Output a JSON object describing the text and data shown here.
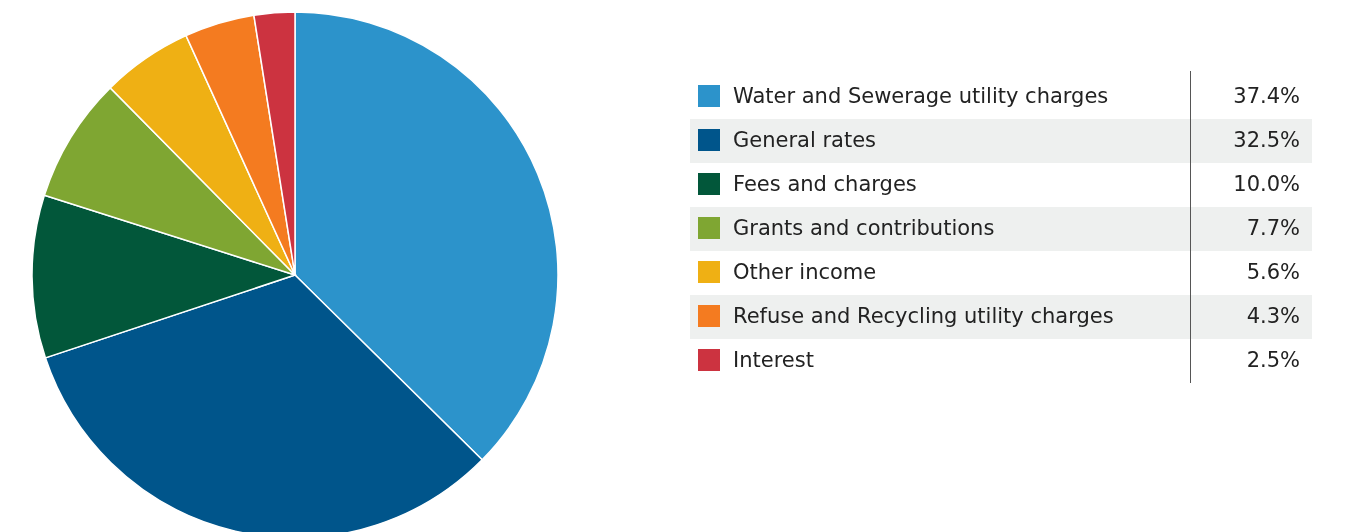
{
  "chart_data": {
    "type": "pie",
    "categories": [
      "Water and Sewerage utility charges",
      "General rates",
      "Fees and charges",
      "Grants and contributions",
      "Other income",
      "Refuse and Recycling utility charges",
      "Interest"
    ],
    "values": [
      37.4,
      32.5,
      10.0,
      7.7,
      5.6,
      4.3,
      2.5
    ],
    "colors": [
      "#2c93cb",
      "#00558b",
      "#02573a",
      "#7fa632",
      "#efb014",
      "#f47b20",
      "#cc3340"
    ],
    "value_labels": [
      "37.4%",
      "32.5%",
      "10.0%",
      "7.7%",
      "5.6%",
      "4.3%",
      "2.5%"
    ],
    "legend": "right"
  }
}
